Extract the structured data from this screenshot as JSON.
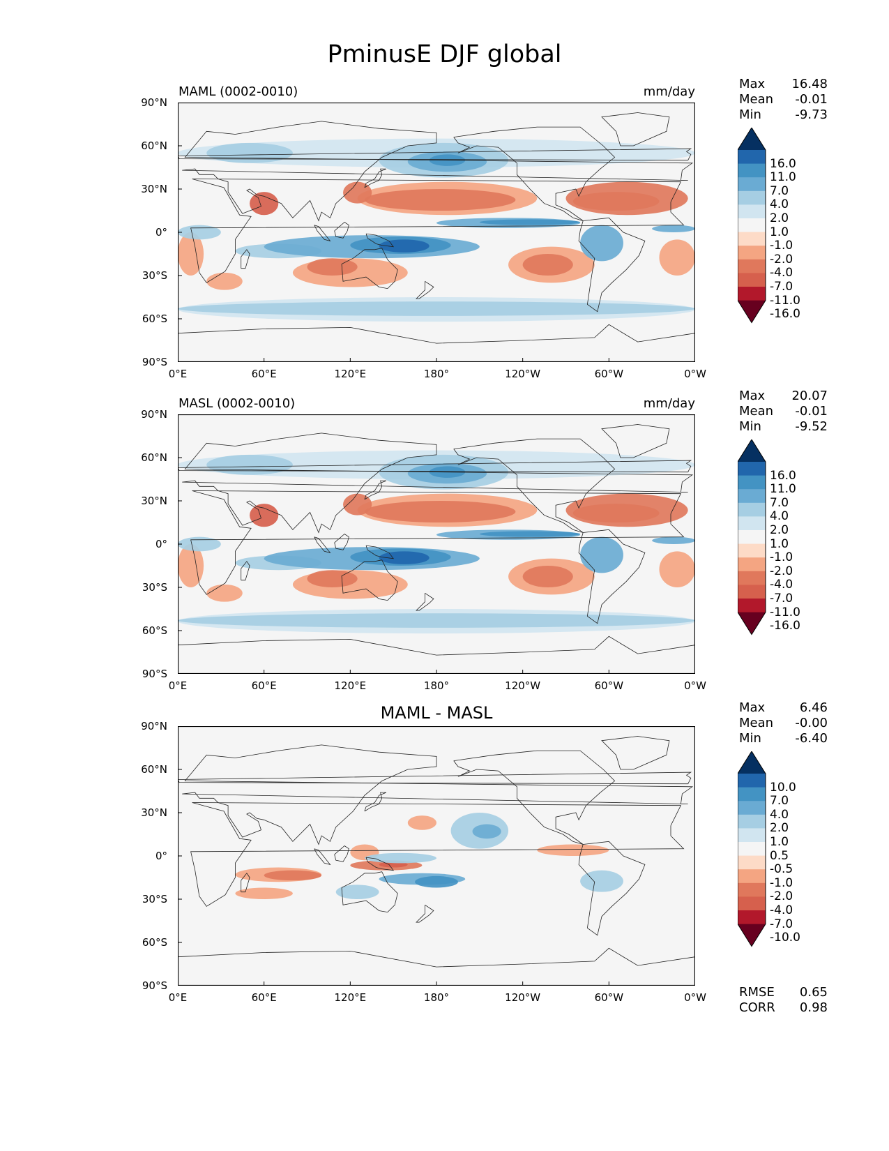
{
  "title": "PminusE DJF global",
  "xticks": [
    "0°E",
    "60°E",
    "120°E",
    "180°",
    "120°W",
    "60°W",
    "0°W"
  ],
  "yticks": [
    "90°N",
    "60°N",
    "30°N",
    "0°",
    "30°S",
    "60°S",
    "90°S"
  ],
  "panels": [
    {
      "left_title": "MAML (0002-0010)",
      "center_title": "",
      "right_title": "mm/day",
      "stats": {
        "max_label": "Max",
        "max": "16.48",
        "mean_label": "Mean",
        "mean": "-0.01",
        "min_label": "Min",
        "min": "-9.73"
      },
      "colorbar_levels": [
        "16.0",
        "11.0",
        "7.0",
        "4.0",
        "2.0",
        "1.0",
        "-1.0",
        "-2.0",
        "-4.0",
        "-7.0",
        "-11.0",
        "-16.0"
      ]
    },
    {
      "left_title": "MASL (0002-0010)",
      "center_title": "",
      "right_title": "mm/day",
      "stats": {
        "max_label": "Max",
        "max": "20.07",
        "mean_label": "Mean",
        "mean": "-0.01",
        "min_label": "Min",
        "min": "-9.52"
      },
      "colorbar_levels": [
        "16.0",
        "11.0",
        "7.0",
        "4.0",
        "2.0",
        "1.0",
        "-1.0",
        "-2.0",
        "-4.0",
        "-7.0",
        "-11.0",
        "-16.0"
      ]
    },
    {
      "left_title": "",
      "center_title": "MAML - MASL",
      "right_title": "",
      "stats": {
        "max_label": "Max",
        "max": "6.46",
        "mean_label": "Mean",
        "mean": "-0.00",
        "min_label": "Min",
        "min": "-6.40"
      },
      "colorbar_levels": [
        "10.0",
        "7.0",
        "4.0",
        "2.0",
        "1.0",
        "0.5",
        "-0.5",
        "-1.0",
        "-2.0",
        "-4.0",
        "-7.0",
        "-10.0"
      ],
      "extra": {
        "rmse_label": "RMSE",
        "rmse": "0.65",
        "corr_label": "CORR",
        "corr": "0.98"
      }
    }
  ],
  "colors": {
    "background": "#f5f5f5",
    "cmap": [
      "#053061",
      "#2166ac",
      "#4393c3",
      "#6aabd3",
      "#a6cee3",
      "#d1e5f0",
      "#f5f5f5",
      "#fddbc7",
      "#f4a582",
      "#e0785c",
      "#d6604d",
      "#b2182b",
      "#67001f"
    ]
  }
}
